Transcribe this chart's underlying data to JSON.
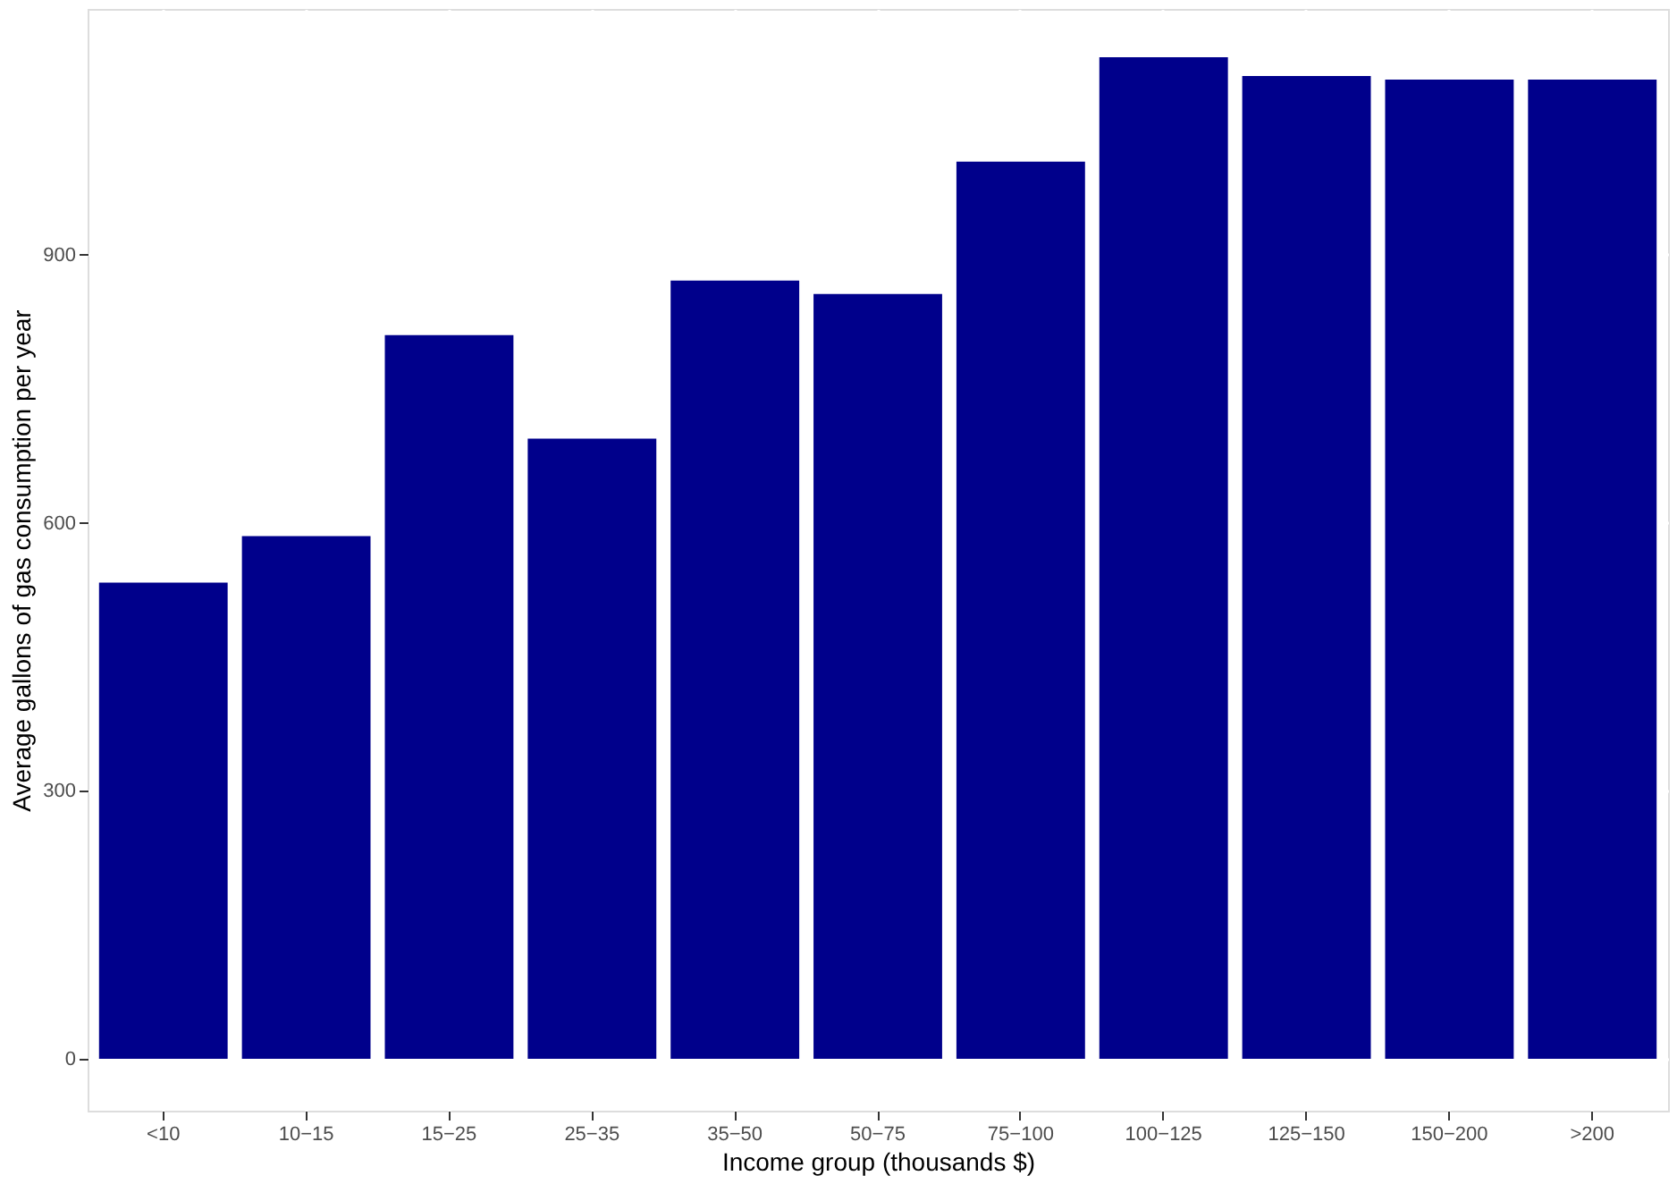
{
  "chart_data": {
    "type": "bar",
    "xlabel": "Income group (thousands $)",
    "ylabel": "Average gallons of gas consumption per year",
    "categories": [
      "<10",
      "10−15",
      "15−25",
      "25−35",
      "35−50",
      "50−75",
      "75−100",
      "100−125",
      "125−150",
      "150−200",
      ">200"
    ],
    "values": [
      533,
      585,
      810,
      694,
      871,
      856,
      1004,
      1121,
      1100,
      1096,
      1096
    ],
    "color": "#00008b",
    "ylim": [
      -58,
      1175
    ],
    "yticks": [
      0,
      300,
      600,
      900
    ],
    "grid": true
  }
}
